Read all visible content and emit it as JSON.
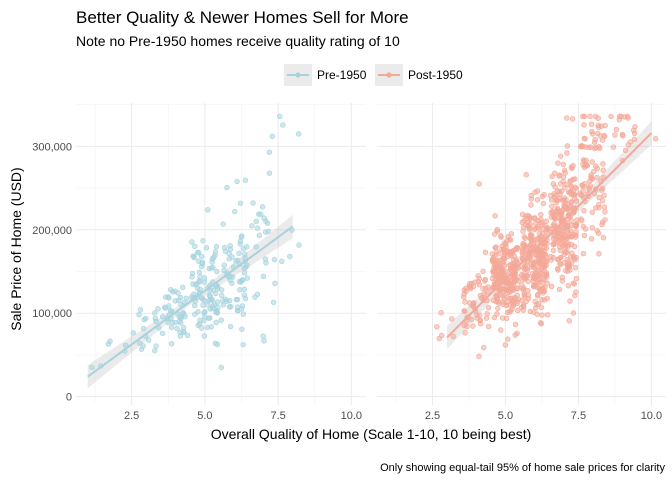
{
  "chart_data": {
    "type": "scatter",
    "title": "Better Quality & Newer Homes Sell for More",
    "subtitle": "Note no Pre-1950 homes receive quality rating of 10",
    "xlabel": "Overall Quality of Home (Scale 1-10, 10 being best)",
    "ylabel": "Sale Price of Home (USD)",
    "caption": "Only showing equal-tail 95% of home sale prices for clarity",
    "xlim": [
      0.6,
      10.5
    ],
    "ylim": [
      -10000,
      352000
    ],
    "x_ticks": [
      2.5,
      5.0,
      7.5,
      10.0
    ],
    "x_tick_labels": [
      "2.5",
      "5.0",
      "7.5",
      "10.0"
    ],
    "y_ticks": [
      0,
      100000,
      200000,
      300000
    ],
    "y_tick_labels": [
      "0",
      "100,000",
      "200,000",
      "300,000"
    ],
    "grid": true,
    "legend_position": "top",
    "panels": [
      {
        "name": "Pre-1950",
        "color": "#a6d3de",
        "fit": {
          "x_start": 1,
          "y_start": 24000,
          "x_end": 8,
          "y_end": 204000
        },
        "groups": [
          {
            "x": 1,
            "mean": 38000,
            "sd": 3000,
            "n": 2
          },
          {
            "x": 2,
            "mean": 64000,
            "sd": 6000,
            "n": 4
          },
          {
            "x": 3,
            "mean": 82000,
            "sd": 18000,
            "n": 18
          },
          {
            "x": 4,
            "mean": 102000,
            "sd": 16000,
            "n": 45
          },
          {
            "x": 5,
            "mean": 126000,
            "sd": 28000,
            "n": 95
          },
          {
            "x": 6,
            "mean": 150000,
            "sd": 38000,
            "n": 70
          },
          {
            "x": 7,
            "mean": 182000,
            "sd": 45000,
            "n": 25
          },
          {
            "x": 8,
            "mean": 210000,
            "sd": 50000,
            "n": 5
          }
        ],
        "extra_points": [
          {
            "x": 8.2,
            "y": 315000
          },
          {
            "x": 7.3,
            "y": 312000
          },
          {
            "x": 7.2,
            "y": 293000
          },
          {
            "x": 6.1,
            "y": 258000
          },
          {
            "x": 5.1,
            "y": 224000
          },
          {
            "x": 7.9,
            "y": 168000
          }
        ]
      },
      {
        "name": "Post-1950",
        "color": "#f4a898",
        "fit": {
          "x_start": 3,
          "y_start": 71000,
          "x_end": 10,
          "y_end": 316000
        },
        "groups": [
          {
            "x": 3,
            "mean": 78000,
            "sd": 10000,
            "n": 6
          },
          {
            "x": 4,
            "mean": 112000,
            "sd": 22000,
            "n": 60
          },
          {
            "x": 5,
            "mean": 140000,
            "sd": 25000,
            "n": 230
          },
          {
            "x": 6,
            "mean": 165000,
            "sd": 32000,
            "n": 260
          },
          {
            "x": 7,
            "mean": 205000,
            "sd": 40000,
            "n": 230
          },
          {
            "x": 8,
            "mean": 262000,
            "sd": 45000,
            "n": 100
          },
          {
            "x": 9,
            "mean": 312000,
            "sd": 16000,
            "n": 18
          },
          {
            "x": 10,
            "mean": 312000,
            "sd": 4000,
            "n": 1
          }
        ],
        "extra_points": [
          {
            "x": 4.1,
            "y": 255000
          },
          {
            "x": 7.1,
            "y": 334000
          },
          {
            "x": 7.3,
            "y": 333000
          },
          {
            "x": 8.9,
            "y": 332000
          },
          {
            "x": 9.2,
            "y": 334000
          },
          {
            "x": 5.0,
            "y": 62000
          }
        ]
      }
    ]
  }
}
